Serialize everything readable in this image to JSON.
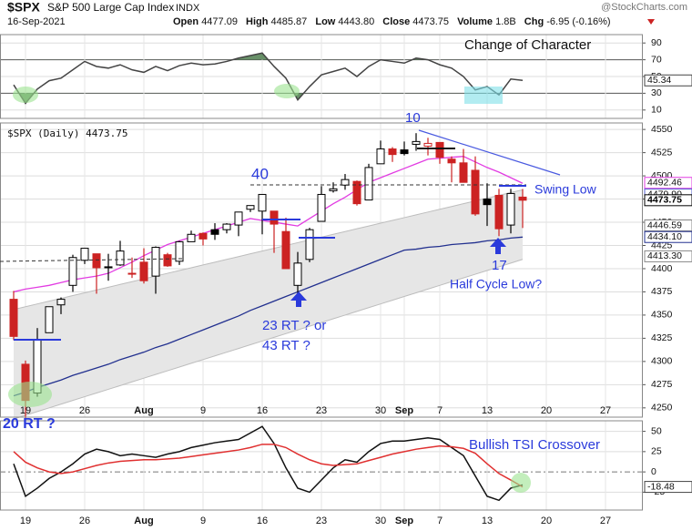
{
  "header": {
    "symbol": "$SPX",
    "name": "S&P 500 Large Cap Index",
    "exchange": "INDX",
    "date": "16-Sep-2021",
    "watermark": "@StockCharts.com",
    "quote": [
      {
        "label": "Open",
        "value": "4477.09"
      },
      {
        "label": "High",
        "value": "4485.87"
      },
      {
        "label": "Low",
        "value": "4443.80"
      },
      {
        "label": "Close",
        "value": "4473.75"
      },
      {
        "label": "Volume",
        "value": "1.8B"
      },
      {
        "label": "Chg",
        "value": "-6.95 (-0.16%)"
      }
    ]
  },
  "chart_data": [
    {
      "type": "line",
      "annotation": "Change of Character",
      "ylim": [
        0,
        100
      ],
      "yticks": [
        90,
        70,
        50,
        30,
        10
      ],
      "fill_above": 70,
      "fill_below": 30,
      "fill_color": "#4e7d4e",
      "series": [
        {
          "color": "#444444",
          "values": [
            40,
            18,
            35,
            45,
            48,
            58,
            68,
            62,
            60,
            64,
            58,
            55,
            62,
            57,
            63,
            66,
            64,
            65,
            68,
            72,
            75,
            78,
            62,
            48,
            22,
            38,
            52,
            56,
            60,
            50,
            62,
            70,
            68,
            66,
            72,
            70,
            64,
            60,
            50,
            34,
            38,
            28,
            47,
            45.34,
            null,
            null,
            null,
            null,
            null,
            null,
            null,
            null,
            null,
            null
          ]
        }
      ],
      "value_boxes": [
        {
          "value": 45.34,
          "color": "#444444"
        }
      ]
    },
    {
      "type": "candlestick",
      "title": "$SPX (Daily) 4473.75",
      "annotations": [
        "10",
        "40",
        "Swing Low",
        "17",
        "Half Cycle Low?",
        "23 RT ? or",
        "43 RT ?"
      ],
      "categories": [
        null,
        "19",
        null,
        null,
        null,
        null,
        "26",
        null,
        null,
        null,
        null,
        "Aug",
        null,
        null,
        null,
        null,
        "9",
        null,
        null,
        null,
        null,
        "16",
        null,
        null,
        null,
        null,
        "23",
        null,
        null,
        null,
        null,
        "30",
        null,
        "Sep",
        null,
        null,
        "7",
        null,
        null,
        null,
        "13",
        null,
        null,
        null,
        null,
        "20",
        null,
        null,
        null,
        null,
        "27",
        null,
        null,
        null
      ],
      "ylim": [
        4240,
        4557
      ],
      "yticks": [
        4550,
        4525,
        4500,
        4475,
        4450,
        4425,
        4400,
        4375,
        4350,
        4325,
        4300,
        4275,
        4250
      ],
      "up_color": "#000000",
      "down_color": "#cc2222",
      "open": [
        4367,
        4297,
        4266,
        4331,
        4361,
        4382,
        4409,
        4416,
        4402,
        4404,
        4395,
        4407,
        4392,
        4415,
        4408,
        4429,
        4438,
        4442,
        4442,
        4447,
        4464,
        4462,
        4462,
        4440,
        4382,
        4410,
        4451,
        4484,
        4490,
        4494,
        4474,
        4513,
        4529,
        4528,
        4534,
        4532,
        4536,
        4518,
        4514,
        4506,
        4475,
        4479,
        4447,
        4477.09,
        null,
        null,
        null,
        null,
        null,
        null,
        null,
        null,
        null,
        null
      ],
      "high": [
        4376,
        4301,
        4336,
        4359,
        4369,
        4415,
        4422,
        4416,
        4416,
        4430,
        4412,
        4422,
        4424,
        4417,
        4430,
        4441,
        4439,
        4449,
        4449,
        4461,
        4468,
        4480,
        4462,
        4455,
        4418,
        4444,
        4489,
        4493,
        4502,
        4495,
        4513,
        4538,
        4531,
        4537,
        4546,
        4541,
        4536,
        4521,
        4529,
        4521,
        4492,
        4486,
        4486,
        4485.87,
        null,
        null,
        null,
        null,
        null,
        null,
        null,
        null,
        null,
        null
      ],
      "low": [
        4323,
        4233,
        4262,
        4331,
        4351,
        4375,
        4405,
        4373,
        4387,
        4403,
        4390,
        4384,
        4373,
        4402,
        4404,
        4429,
        4425,
        4431,
        4438,
        4435,
        4461,
        4437,
        4417,
        4400,
        4368,
        4407,
        4451,
        4482,
        4485,
        4468,
        4474,
        4513,
        4515,
        4522,
        4527,
        4522,
        4513,
        4493,
        4493,
        4457,
        4446,
        4435,
        4438,
        4443.8,
        null,
        null,
        null,
        null,
        null,
        null,
        null,
        null,
        null,
        null
      ],
      "close": [
        4327,
        4258,
        4323,
        4359,
        4367,
        4412,
        4422,
        4401,
        4401,
        4419,
        4395,
        4387,
        4423,
        4403,
        4429,
        4437,
        4432,
        4437,
        4448,
        4461,
        4468,
        4480,
        4448,
        4400,
        4406,
        4442,
        4480,
        4486,
        4496,
        4470,
        4509,
        4529,
        4523,
        4524,
        4537,
        4535,
        4520,
        4514,
        4493,
        4459,
        4469,
        4443,
        4481,
        4473.75,
        null,
        null,
        null,
        null,
        null,
        null,
        null,
        null,
        null,
        null
      ],
      "band": {
        "color": "#e6e6e6",
        "edge_color": "#bdbdbd",
        "upper": [
          4356,
          4359,
          4362,
          4365,
          4368,
          4371,
          4374,
          4377,
          4380,
          4383,
          4386,
          4389,
          4392,
          4395,
          4398,
          4401,
          4404,
          4407,
          4410,
          4413,
          4416,
          4419,
          4422,
          4425,
          4428,
          4431,
          4434,
          4437,
          4440,
          4443,
          4446,
          4449,
          4452,
          4455,
          4458,
          4461,
          4464,
          4467,
          4470,
          4473,
          4476,
          4479,
          4482,
          4485,
          null,
          null,
          null,
          null,
          null,
          null,
          null,
          null,
          null,
          null
        ],
        "lower": [
          4238,
          4242,
          4246,
          4250,
          4254,
          4258,
          4262,
          4266,
          4270,
          4274,
          4278,
          4282,
          4286,
          4290,
          4294,
          4298,
          4302,
          4306,
          4310,
          4314,
          4318,
          4322,
          4326,
          4330,
          4334,
          4338,
          4342,
          4346,
          4350,
          4354,
          4358,
          4362,
          4366,
          4370,
          4374,
          4378,
          4382,
          4386,
          4390,
          4394,
          4398,
          4402,
          4406,
          4410,
          null,
          null,
          null,
          null,
          null,
          null,
          null,
          null,
          null,
          null
        ]
      },
      "overlays": [
        {
          "color": "#e23ce2",
          "values": [
            4375,
            4378,
            4380,
            4382,
            4385,
            4388,
            4390,
            4392,
            4395,
            4401,
            4407,
            4414,
            4420,
            4426,
            4430,
            4434,
            4438,
            4442,
            4446,
            4450,
            4454,
            4452,
            4450,
            4448,
            4446,
            4454,
            4462,
            4470,
            4477,
            4485,
            4493,
            4498,
            4503,
            4508,
            4513,
            4518,
            4519,
            4520,
            4521,
            4515,
            4509,
            4504,
            4498,
            4492,
            null,
            null,
            null,
            null,
            null,
            null,
            null,
            null,
            null,
            null
          ]
        },
        {
          "color": "#22308f",
          "values": [
            4263,
            4267,
            4272,
            4276,
            4280,
            4285,
            4289,
            4293,
            4297,
            4302,
            4306,
            4310,
            4315,
            4319,
            4324,
            4329,
            4334,
            4339,
            4344,
            4349,
            4355,
            4360,
            4365,
            4370,
            4375,
            4380,
            4385,
            4390,
            4395,
            4400,
            4405,
            4410,
            4415,
            4420,
            4421,
            4423,
            4424,
            4426,
            4427,
            4428,
            4430,
            4431,
            4433,
            4434,
            null,
            null,
            null,
            null,
            null,
            null,
            null,
            null,
            null,
            null
          ]
        }
      ],
      "value_boxes": [
        {
          "value": 4492.46,
          "color": "#e23ce2"
        },
        {
          "value": 4479.9,
          "label": "4479.90",
          "color": "#5560d0"
        },
        {
          "value": 4446.59,
          "color": "#888888"
        },
        {
          "value": 4434.1,
          "label": "4434.10",
          "color": "#22308f"
        },
        {
          "value": 4413.3,
          "label": "4413.30",
          "color": "#888888"
        },
        {
          "value": 4473.75,
          "color": "#000000"
        }
      ]
    },
    {
      "type": "line",
      "annotations": [
        "20 RT ?",
        "Bullish TSI Crossover"
      ],
      "categories": [
        null,
        "19",
        null,
        null,
        null,
        null,
        "26",
        null,
        null,
        null,
        null,
        "Aug",
        null,
        null,
        null,
        null,
        "9",
        null,
        null,
        null,
        null,
        "16",
        null,
        null,
        null,
        null,
        "23",
        null,
        null,
        null,
        null,
        "30",
        null,
        "Sep",
        null,
        null,
        "7",
        null,
        null,
        null,
        "13",
        null,
        null,
        null,
        null,
        "20",
        null,
        null,
        null,
        null,
        "27",
        null,
        null,
        null
      ],
      "ylim": [
        -47,
        63
      ],
      "yticks": [
        50,
        25,
        0,
        -25
      ],
      "series": [
        {
          "color": "#111111",
          "values": [
            10,
            -30,
            -20,
            -8,
            0,
            10,
            22,
            28,
            25,
            20,
            22,
            20,
            18,
            22,
            25,
            30,
            33,
            36,
            38,
            40,
            48,
            56,
            35,
            5,
            -20,
            -25,
            -10,
            5,
            15,
            12,
            25,
            35,
            38,
            38,
            40,
            42,
            40,
            30,
            20,
            -5,
            -30,
            -35,
            -20,
            -16,
            null,
            null,
            null,
            null,
            null,
            null,
            null,
            null,
            null,
            null
          ]
        },
        {
          "color": "#e03030",
          "values": [
            25,
            12,
            5,
            0,
            -2,
            0,
            4,
            8,
            11,
            13,
            14,
            15,
            15,
            16,
            17,
            19,
            21,
            23,
            25,
            27,
            30,
            34,
            34,
            30,
            22,
            15,
            10,
            8,
            9,
            10,
            14,
            18,
            22,
            25,
            28,
            30,
            32,
            31,
            29,
            23,
            10,
            -2,
            -10,
            -18.48,
            null,
            null,
            null,
            null,
            null,
            null,
            null,
            null,
            null,
            null
          ]
        }
      ],
      "value_boxes": [
        {
          "value": -18.48,
          "color": "#444444"
        }
      ]
    }
  ]
}
